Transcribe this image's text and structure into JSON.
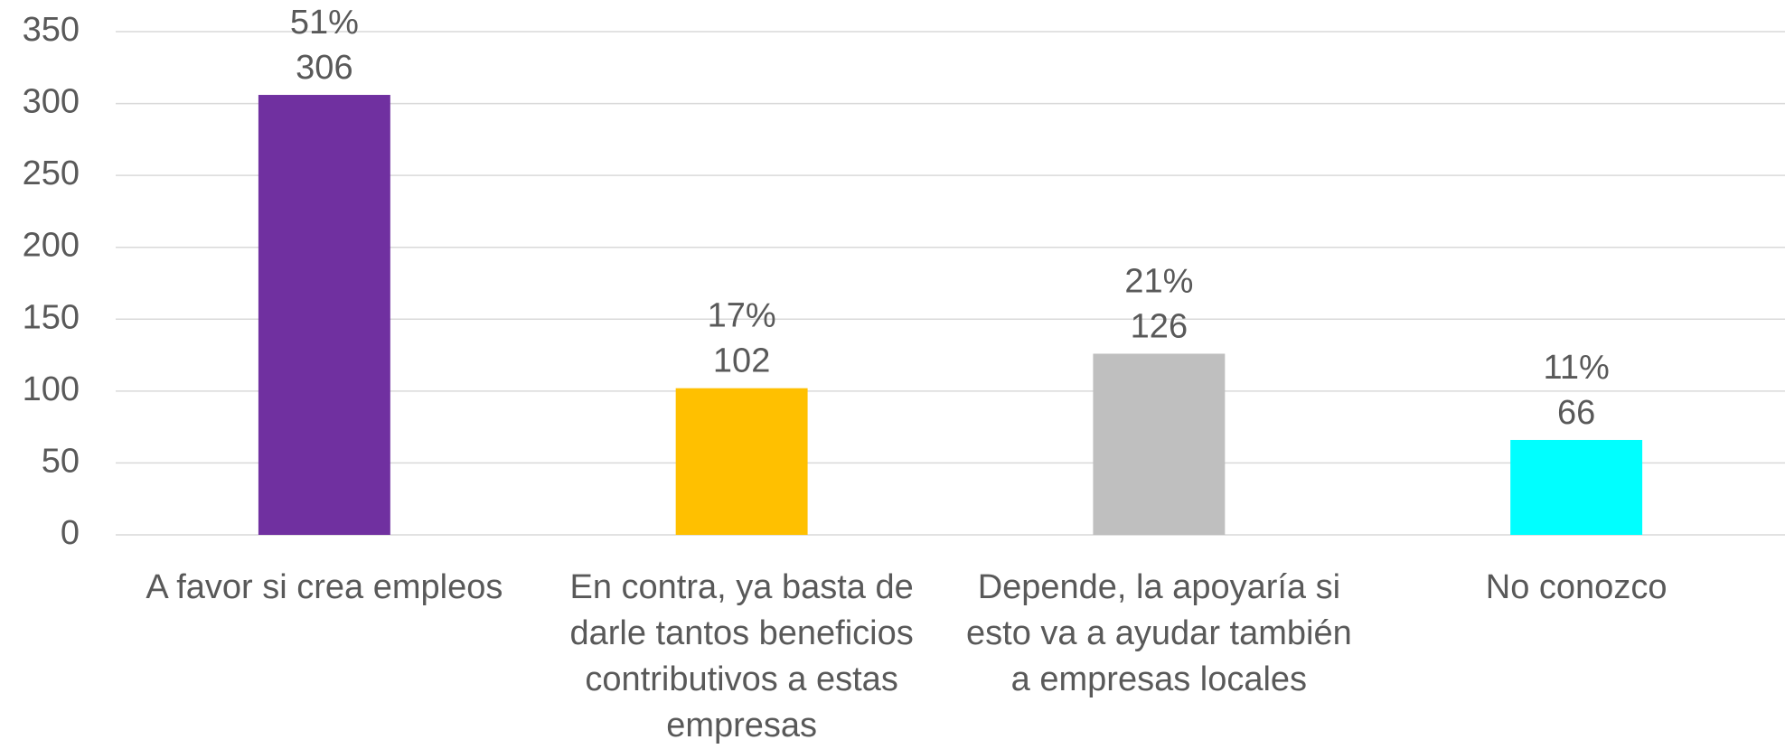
{
  "chart_data": {
    "type": "bar",
    "categories": [
      "A favor si crea empleos",
      "En contra, ya basta de darle tantos beneficios contributivos a estas empresas",
      "Depende, la apoyaría si esto va a ayudar también a empresas locales",
      "No conozco"
    ],
    "values": [
      306,
      102,
      126,
      66
    ],
    "percent_labels": [
      "51%",
      "17%",
      "21%",
      "11%"
    ],
    "colors": [
      "#7030a0",
      "#ffc000",
      "#bfbfbf",
      "#00ffff"
    ],
    "ylim": [
      0,
      350
    ],
    "yticks": [
      0,
      50,
      100,
      150,
      200,
      250,
      300,
      350
    ],
    "grid": true
  }
}
